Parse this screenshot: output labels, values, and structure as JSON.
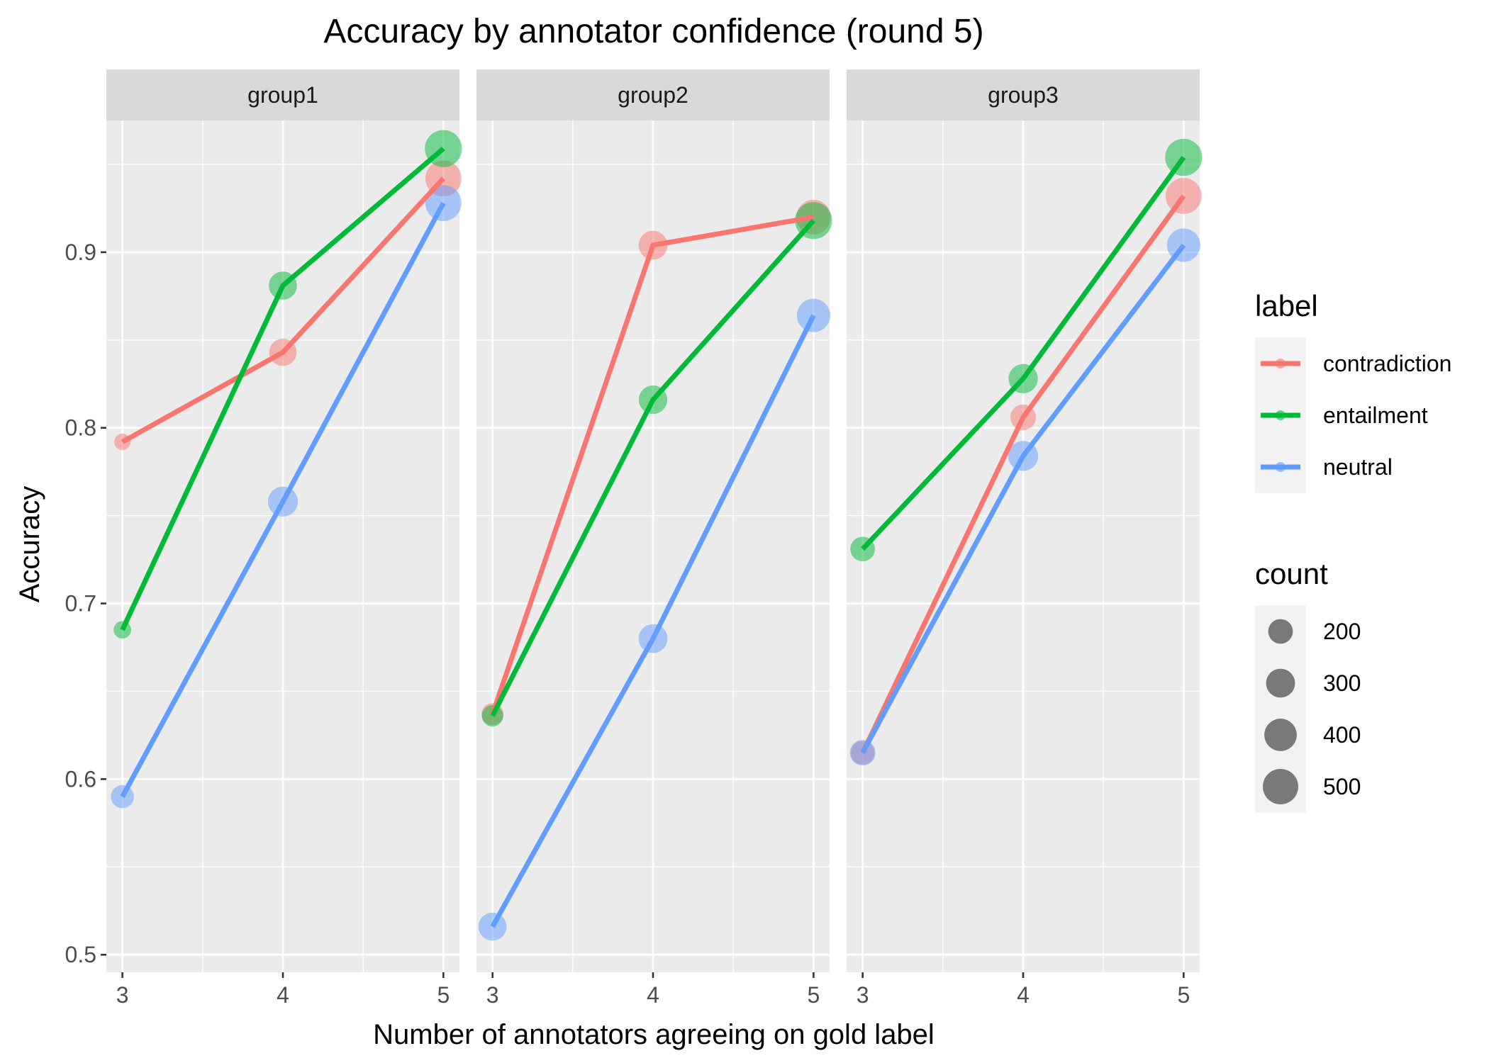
{
  "chart_data": {
    "type": "line",
    "title": "Accuracy by annotator confidence (round 5)",
    "xlabel": "Number of annotators agreeing on gold label",
    "ylabel": "Accuracy",
    "x": [
      3,
      4,
      5
    ],
    "xlim": [
      2.9,
      5.1
    ],
    "ylim": [
      0.49,
      0.975
    ],
    "x_ticks": [
      "3",
      "4",
      "5"
    ],
    "y_ticks": [
      "0.5",
      "0.6",
      "0.7",
      "0.8",
      "0.9"
    ],
    "y_tick_values": [
      0.5,
      0.6,
      0.7,
      0.8,
      0.9
    ],
    "grid": true,
    "legend_position": "right",
    "colors": {
      "contradiction": "#F8766D",
      "entailment": "#00BA38",
      "neutral": "#619CFF"
    },
    "panels": [
      {
        "name": "group1",
        "series": [
          {
            "name": "contradiction",
            "values": [
              0.792,
              0.843,
              0.942
            ],
            "counts": [
              80,
              260,
              520
            ]
          },
          {
            "name": "entailment",
            "values": [
              0.685,
              0.881,
              0.959
            ],
            "counts": [
              90,
              280,
              560
            ]
          },
          {
            "name": "neutral",
            "values": [
              0.59,
              0.758,
              0.928
            ],
            "counts": [
              170,
              330,
              520
            ]
          }
        ]
      },
      {
        "name": "group2",
        "series": [
          {
            "name": "contradiction",
            "values": [
              0.637,
              0.904,
              0.92
            ],
            "counts": [
              150,
              300,
              470
            ]
          },
          {
            "name": "entailment",
            "values": [
              0.636,
              0.816,
              0.918
            ],
            "counts": [
              140,
              290,
              560
            ]
          },
          {
            "name": "neutral",
            "values": [
              0.516,
              0.68,
              0.864
            ],
            "counts": [
              280,
              300,
              430
            ]
          }
        ]
      },
      {
        "name": "group3",
        "series": [
          {
            "name": "contradiction",
            "values": [
              0.615,
              0.806,
              0.932
            ],
            "counts": [
              180,
              220,
              520
            ]
          },
          {
            "name": "entailment",
            "values": [
              0.731,
              0.828,
              0.954
            ],
            "counts": [
              200,
              310,
              560
            ]
          },
          {
            "name": "neutral",
            "values": [
              0.615,
              0.784,
              0.904
            ],
            "counts": [
              220,
              330,
              430
            ]
          }
        ]
      }
    ],
    "legend": {
      "color_title": "label",
      "color_entries": [
        "contradiction",
        "entailment",
        "neutral"
      ],
      "size_title": "count",
      "size_entries": [
        "200",
        "300",
        "400",
        "500"
      ],
      "size_values": [
        200,
        300,
        400,
        500
      ]
    }
  }
}
